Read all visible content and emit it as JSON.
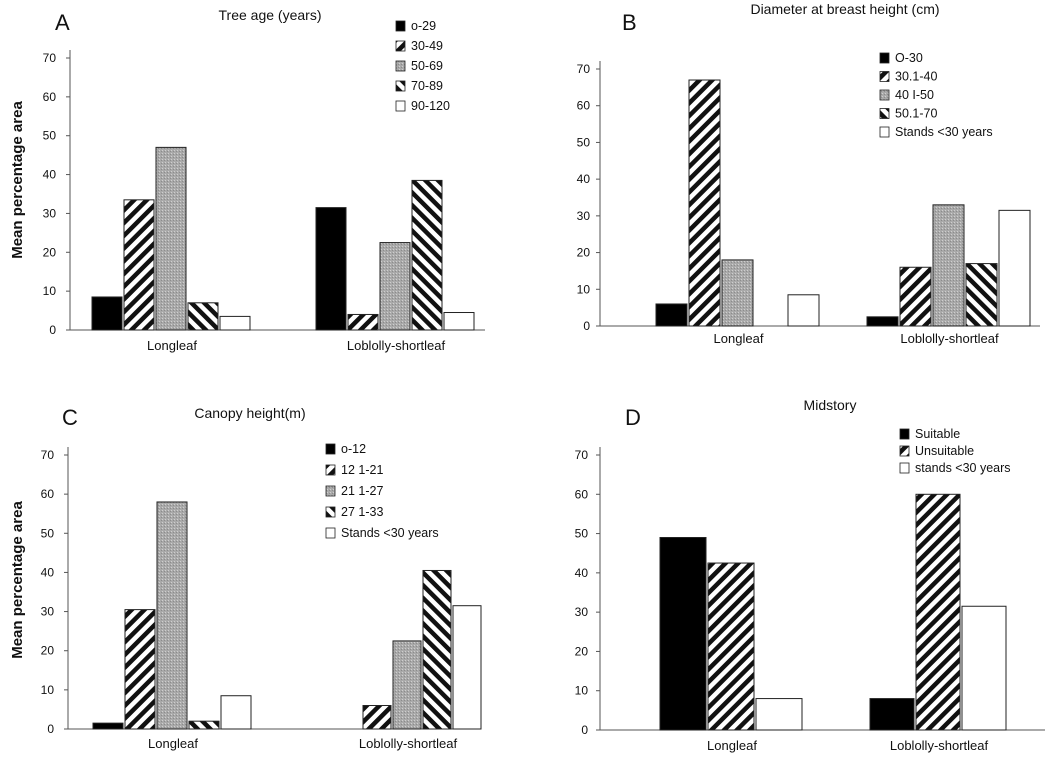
{
  "ylabel_text": "Mean percentage area",
  "chart_data": [
    {
      "type": "bar",
      "panel": "A",
      "title": "Tree age (years)",
      "ylabel": "Mean percentage area",
      "xlabel": "",
      "ylim": [
        0,
        70
      ],
      "yticks": [
        "0",
        "10",
        "20",
        "30",
        "40",
        "50",
        "60",
        "70"
      ],
      "categories": [
        "Longleaf",
        "Loblolly-shortleaf"
      ],
      "legend_position": "top-right",
      "series": [
        {
          "name": "o-29",
          "pattern": "solid",
          "values": [
            8.5,
            31.5
          ]
        },
        {
          "name": "30-49",
          "pattern": "diag-right",
          "values": [
            33.5,
            4
          ]
        },
        {
          "name": "50-69",
          "pattern": "gray",
          "values": [
            47,
            22.5
          ]
        },
        {
          "name": "70-89",
          "pattern": "diag-left",
          "values": [
            7,
            38.5
          ]
        },
        {
          "name": "90-120",
          "pattern": "white",
          "values": [
            3.5,
            4.5
          ]
        }
      ]
    },
    {
      "type": "bar",
      "panel": "B",
      "title": "Diameter at breast height (cm)",
      "ylabel": "",
      "xlabel": "",
      "ylim": [
        0,
        70
      ],
      "yticks": [
        "0",
        "10",
        "20",
        "30",
        "40",
        "50",
        "60",
        "70"
      ],
      "categories": [
        "Longleaf",
        "Loblolly-shortleaf"
      ],
      "legend_position": "top-right",
      "series": [
        {
          "name": "O-30",
          "pattern": "solid",
          "values": [
            6,
            2.5
          ]
        },
        {
          "name": "30.1-40",
          "pattern": "diag-right",
          "values": [
            67,
            16
          ]
        },
        {
          "name": "40  I-50",
          "pattern": "gray",
          "values": [
            18,
            33
          ]
        },
        {
          "name": "50.1-70",
          "pattern": "diag-left",
          "values": [
            0,
            17
          ]
        },
        {
          "name": "Stands <30 years",
          "pattern": "white",
          "values": [
            8.5,
            31.5
          ]
        }
      ]
    },
    {
      "type": "bar",
      "panel": "C",
      "title": "Canopy  height(m)",
      "ylabel": "Mean percentage area",
      "xlabel": "",
      "ylim": [
        0,
        70
      ],
      "yticks": [
        "0",
        "10",
        "20",
        "30",
        "40",
        "50",
        "60",
        "70"
      ],
      "categories": [
        "Longleaf",
        "Loblolly-shortleaf"
      ],
      "legend_position": "top-right",
      "series": [
        {
          "name": "o-12",
          "pattern": "solid",
          "values": [
            1.5,
            0
          ]
        },
        {
          "name": "12 1-21",
          "pattern": "diag-right",
          "values": [
            30.5,
            6
          ]
        },
        {
          "name": "21 1-27",
          "pattern": "gray",
          "values": [
            58,
            22.5
          ]
        },
        {
          "name": "27 1-33",
          "pattern": "diag-left",
          "values": [
            2,
            40.5
          ]
        },
        {
          "name": "Stands <30 years",
          "pattern": "white",
          "values": [
            8.5,
            31.5
          ]
        }
      ]
    },
    {
      "type": "bar",
      "panel": "D",
      "title": "Midstory",
      "ylabel": "",
      "xlabel": "",
      "ylim": [
        0,
        70
      ],
      "yticks": [
        "0",
        "10",
        "20",
        "30",
        "40",
        "50",
        "60",
        "70"
      ],
      "categories": [
        "Longleaf",
        "Loblolly-shortleaf"
      ],
      "legend_position": "top-right",
      "series": [
        {
          "name": "Suitable",
          "pattern": "solid",
          "values": [
            49,
            8
          ]
        },
        {
          "name": "Unsuitable",
          "pattern": "diag-right",
          "values": [
            42.5,
            60
          ]
        },
        {
          "name": "stands  <30 years",
          "pattern": "white",
          "values": [
            8,
            31.5
          ]
        }
      ]
    }
  ]
}
